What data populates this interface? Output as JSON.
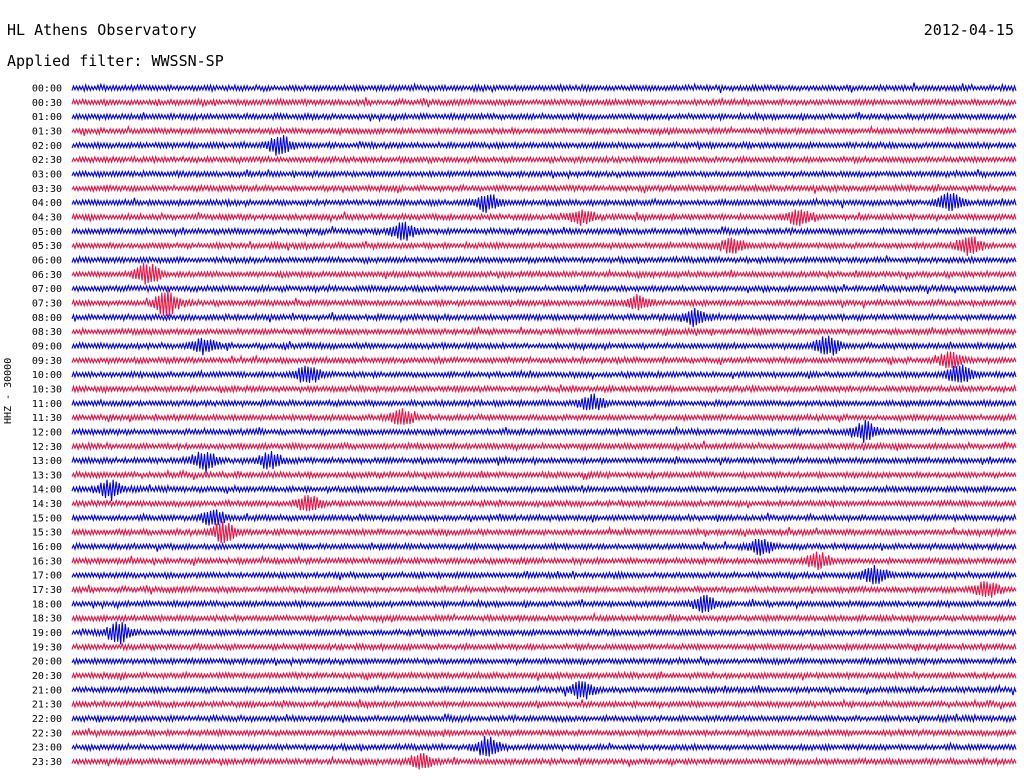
{
  "header": {
    "station": "HL Athens Observatory",
    "date": "2012-04-15",
    "filter": "Applied filter: WWSSN-SP"
  },
  "chart_data": {
    "type": "line",
    "title": "HL Athens Observatory",
    "ylabel": "HHZ - 30000",
    "row_labels": [
      "00:00",
      "00:30",
      "01:00",
      "01:30",
      "02:00",
      "02:30",
      "03:00",
      "03:30",
      "04:00",
      "04:30",
      "05:00",
      "05:30",
      "06:00",
      "06:30",
      "07:00",
      "07:30",
      "08:00",
      "08:30",
      "09:00",
      "09:30",
      "10:00",
      "10:30",
      "11:00",
      "11:30",
      "12:00",
      "12:30",
      "13:00",
      "13:30",
      "14:00",
      "14:30",
      "15:00",
      "15:30",
      "16:00",
      "16:30",
      "17:00",
      "17:30",
      "18:00",
      "18:30",
      "19:00",
      "19:30",
      "20:00",
      "20:30",
      "21:00",
      "21:30",
      "22:00",
      "22:30",
      "23:00",
      "23:30"
    ],
    "colors": [
      "#0000ee",
      "#ee1144"
    ],
    "color_order": "alternating rows, starting blue",
    "event_bursts": [
      {
        "row": "02:00",
        "t": 0.22,
        "amp": 1.6
      },
      {
        "row": "04:00",
        "t": 0.44,
        "amp": 1.3
      },
      {
        "row": "04:00",
        "t": 0.93,
        "amp": 1.4
      },
      {
        "row": "04:30",
        "t": 0.54,
        "amp": 1.1
      },
      {
        "row": "04:30",
        "t": 0.77,
        "amp": 1.2
      },
      {
        "row": "05:00",
        "t": 0.35,
        "amp": 1.3
      },
      {
        "row": "05:30",
        "t": 0.7,
        "amp": 1.1
      },
      {
        "row": "05:30",
        "t": 0.95,
        "amp": 1.5
      },
      {
        "row": "06:30",
        "t": 0.08,
        "amp": 1.6
      },
      {
        "row": "07:30",
        "t": 0.1,
        "amp": 2.0
      },
      {
        "row": "07:30",
        "t": 0.6,
        "amp": 1.0
      },
      {
        "row": "08:00",
        "t": 0.66,
        "amp": 1.3
      },
      {
        "row": "09:00",
        "t": 0.14,
        "amp": 1.1
      },
      {
        "row": "09:00",
        "t": 0.8,
        "amp": 1.6
      },
      {
        "row": "09:30",
        "t": 0.93,
        "amp": 1.3
      },
      {
        "row": "10:00",
        "t": 0.25,
        "amp": 1.4
      },
      {
        "row": "10:00",
        "t": 0.94,
        "amp": 1.5
      },
      {
        "row": "11:00",
        "t": 0.55,
        "amp": 1.3
      },
      {
        "row": "11:30",
        "t": 0.35,
        "amp": 1.1
      },
      {
        "row": "12:00",
        "t": 0.84,
        "amp": 1.6
      },
      {
        "row": "13:00",
        "t": 0.14,
        "amp": 1.4
      },
      {
        "row": "13:00",
        "t": 0.21,
        "amp": 1.2
      },
      {
        "row": "14:00",
        "t": 0.04,
        "amp": 1.4
      },
      {
        "row": "14:30",
        "t": 0.25,
        "amp": 1.3
      },
      {
        "row": "15:00",
        "t": 0.15,
        "amp": 1.2
      },
      {
        "row": "15:30",
        "t": 0.16,
        "amp": 1.5
      },
      {
        "row": "16:00",
        "t": 0.73,
        "amp": 1.2
      },
      {
        "row": "16:30",
        "t": 0.79,
        "amp": 1.3
      },
      {
        "row": "17:00",
        "t": 0.85,
        "amp": 1.4
      },
      {
        "row": "17:30",
        "t": 0.97,
        "amp": 1.2
      },
      {
        "row": "18:00",
        "t": 0.67,
        "amp": 1.2
      },
      {
        "row": "19:00",
        "t": 0.05,
        "amp": 1.6
      },
      {
        "row": "21:00",
        "t": 0.54,
        "amp": 1.3
      },
      {
        "row": "23:00",
        "t": 0.44,
        "amp": 1.5
      },
      {
        "row": "23:30",
        "t": 0.37,
        "amp": 1.1
      }
    ]
  }
}
